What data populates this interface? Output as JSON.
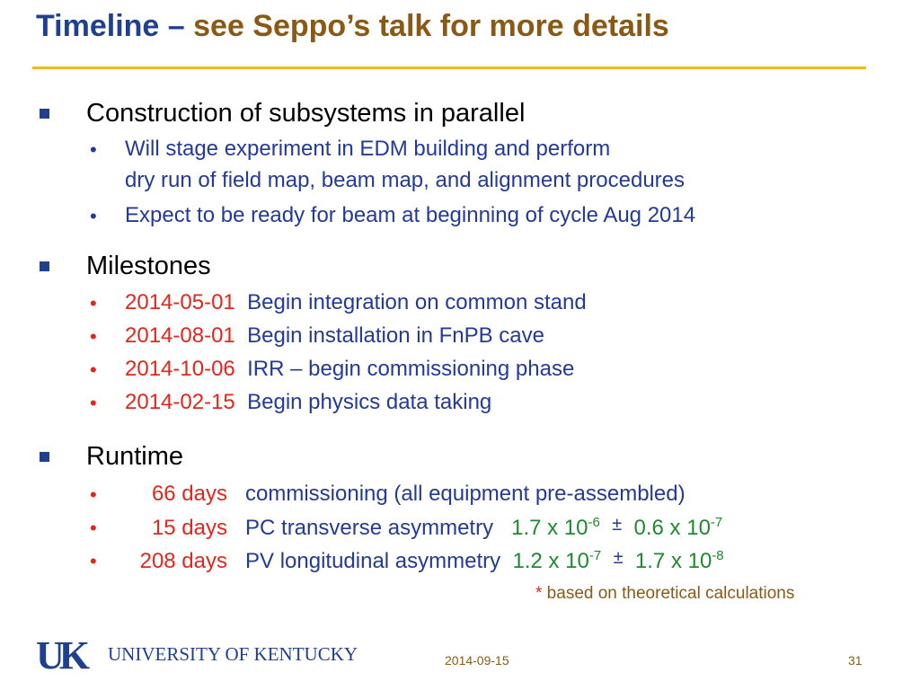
{
  "title": {
    "part1": "Timeline – ",
    "part2": "see Seppo’s talk for more details"
  },
  "sections": [
    {
      "heading": "Construction of subsystems in parallel",
      "items": [
        {
          "line1": "Will stage experiment in EDM building and perform",
          "line2": "dry run of field map, beam map, and alignment procedures"
        },
        {
          "line1": "Expect to be ready for beam at beginning of cycle Aug 2014"
        }
      ]
    },
    {
      "heading": "Milestones",
      "items": [
        {
          "date": "2014-05-01",
          "text": "Begin integration on common stand"
        },
        {
          "date": "2014-08-01",
          "text": "Begin installation in FnPB cave"
        },
        {
          "date": "2014-10-06",
          "text": "IRR – begin commissioning phase"
        },
        {
          "date": "2014-02-15",
          "text": "Begin physics data taking"
        }
      ]
    },
    {
      "heading": "Runtime",
      "items": [
        {
          "days": "66 days",
          "text": "commissioning (all equipment pre-assembled)"
        },
        {
          "days": "15 days",
          "text": "PC transverse asymmetry",
          "val_mant": "1.7 x 10",
          "val_exp": "-6",
          "pm": "±",
          "err_mant": "0.6 x 10",
          "err_exp": "-7"
        },
        {
          "days": "208 days",
          "text": "PV longitudinal asymmetry",
          "val_mant": "1.2 x 10",
          "val_exp": "-7",
          "pm": "±",
          "err_mant": "1.7 x 10",
          "err_exp": "-8"
        }
      ]
    }
  ],
  "footnote": {
    "star": "*",
    "text": " based on theoretical calculations"
  },
  "logo": {
    "mark": "UK",
    "text": "UNIVERSITY OF KENTUCKY"
  },
  "footer": {
    "date": "2014-09-15",
    "page": "31"
  },
  "bullet_glyph": "•",
  "colors": {
    "title_blue": "#1f3f8f",
    "title_brown": "#8a5a14",
    "rule_gold": "#f2b81c",
    "text_blue": "#233a96",
    "date_red": "#e1261c",
    "value_green": "#1e8a2e"
  }
}
